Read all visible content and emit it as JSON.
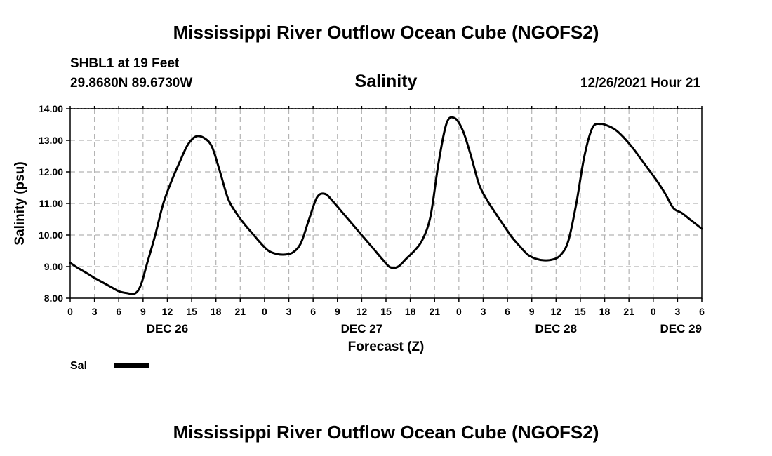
{
  "chart_data": {
    "type": "line",
    "title": "Mississippi River Outflow Ocean Cube (NGOFS2)",
    "subtitle": "Salinity",
    "station": "SHBL1 at 19 Feet",
    "coords": "29.8680N  89.6730W",
    "timestamp": "12/26/2021 Hour 21",
    "xlabel": "Forecast (Z)",
    "ylabel": "Salinity (psu)",
    "xlim": [
      0,
      78
    ],
    "ylim": [
      8,
      14
    ],
    "y_ticks": [
      "8.00",
      "9.00",
      "10.00",
      "11.00",
      "12.00",
      "13.00",
      "14.00"
    ],
    "x_ticks": [
      "0",
      "3",
      "6",
      "9",
      "12",
      "15",
      "18",
      "21",
      "0",
      "3",
      "6",
      "9",
      "12",
      "15",
      "18",
      "21",
      "0",
      "3",
      "6",
      "9",
      "12",
      "15",
      "18",
      "21",
      "0",
      "3",
      "6"
    ],
    "day_labels": [
      {
        "label": "DEC 26",
        "x": 12
      },
      {
        "label": "DEC 27",
        "x": 36
      },
      {
        "label": "DEC 28",
        "x": 60
      },
      {
        "label": "DEC 29",
        "x": 78
      }
    ],
    "grid": true,
    "series": [
      {
        "name": "Sal",
        "x": [
          0,
          1,
          2,
          3,
          4,
          5,
          6,
          7,
          8,
          8.7,
          9.5,
          10.5,
          11.5,
          12.5,
          13.5,
          14.5,
          15.5,
          16.5,
          17.5,
          18.5,
          19.5,
          20.5,
          21.5,
          22.5,
          23.5,
          24.5,
          25.5,
          26.5,
          27.5,
          28.5,
          29.5,
          30.5,
          31.5,
          32.5,
          33.5,
          34.5,
          35.5,
          36.5,
          37.5,
          38.5,
          39.5,
          40.5,
          41.5,
          42.5,
          43.5,
          44.5,
          45.5,
          46.5,
          47.5,
          48.5,
          49.5,
          50.5,
          51.5,
          52.5,
          53.5,
          54.5,
          55.5,
          56.5,
          57.5,
          58.5,
          59.5,
          60.5,
          61.5,
          62.5,
          63.5,
          64.5,
          65.5,
          66.5,
          67.5,
          68.5,
          69.5,
          70.5,
          71.5,
          72.5,
          73.5,
          74.5,
          75.5,
          76.5,
          77.5,
          78
        ],
        "y": [
          9.12,
          8.95,
          8.8,
          8.64,
          8.5,
          8.36,
          8.22,
          8.16,
          8.15,
          8.4,
          9.1,
          10.0,
          11.0,
          11.7,
          12.3,
          12.85,
          13.12,
          13.08,
          12.8,
          12.0,
          11.15,
          10.7,
          10.35,
          10.05,
          9.75,
          9.5,
          9.4,
          9.38,
          9.45,
          9.75,
          10.5,
          11.2,
          11.3,
          11.05,
          10.75,
          10.45,
          10.15,
          9.85,
          9.55,
          9.25,
          8.98,
          9.0,
          9.25,
          9.5,
          9.85,
          10.6,
          12.3,
          13.55,
          13.7,
          13.3,
          12.5,
          11.6,
          11.1,
          10.7,
          10.32,
          9.95,
          9.65,
          9.38,
          9.25,
          9.2,
          9.22,
          9.35,
          9.8,
          11.0,
          12.5,
          13.4,
          13.52,
          13.45,
          13.3,
          13.05,
          12.75,
          12.4,
          12.05,
          11.7,
          11.3,
          10.85,
          10.7,
          10.5,
          10.3,
          10.2
        ],
        "color": "#000000"
      }
    ]
  },
  "legend": {
    "label": "Sal",
    "color": "#000000"
  },
  "footer_title": "Mississippi River Outflow Ocean Cube (NGOFS2)"
}
